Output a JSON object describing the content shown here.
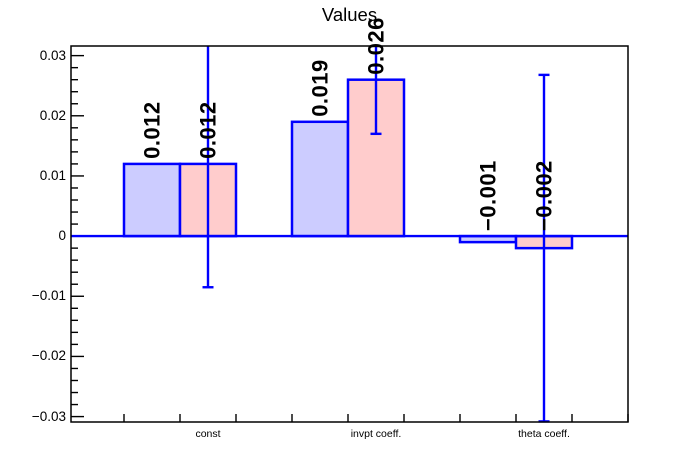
{
  "chart_data": {
    "type": "bar",
    "title": "Values",
    "categories": [
      "const",
      "invpt coeff.",
      "theta coeff."
    ],
    "series": [
      {
        "name": "series-blue",
        "fill": "#ccccff",
        "values": [
          0.012,
          0.019,
          -0.001
        ],
        "value_labels": [
          "0.012",
          "0.019",
          "−0.001"
        ],
        "errors": null
      },
      {
        "name": "series-pink",
        "fill": "#ffcccc",
        "values": [
          0.012,
          0.026,
          -0.002
        ],
        "value_labels": [
          "0.012",
          "0.026",
          "−0.002"
        ],
        "errors": [
          0.0205,
          0.009,
          0.0288
        ]
      }
    ],
    "bar_border_color": "#0000ff",
    "error_bar_color": "#0000ff",
    "zero_line_color": "#0000ff",
    "frame_color": "#000000",
    "text_color": "#000000",
    "ylim": [
      -0.0309,
      0.0316
    ],
    "yticks": [
      0.03,
      0.02,
      0.01,
      0,
      -0.01,
      -0.02,
      -0.03
    ],
    "ytick_labels": [
      "0.03",
      "0.02",
      "0.01",
      "0",
      "−0.01",
      "−0.02",
      "−0.03"
    ],
    "minor_tick_step": 0.002,
    "bars_per_group": 2,
    "bins_per_group": 3,
    "grid": false,
    "legend": null
  }
}
